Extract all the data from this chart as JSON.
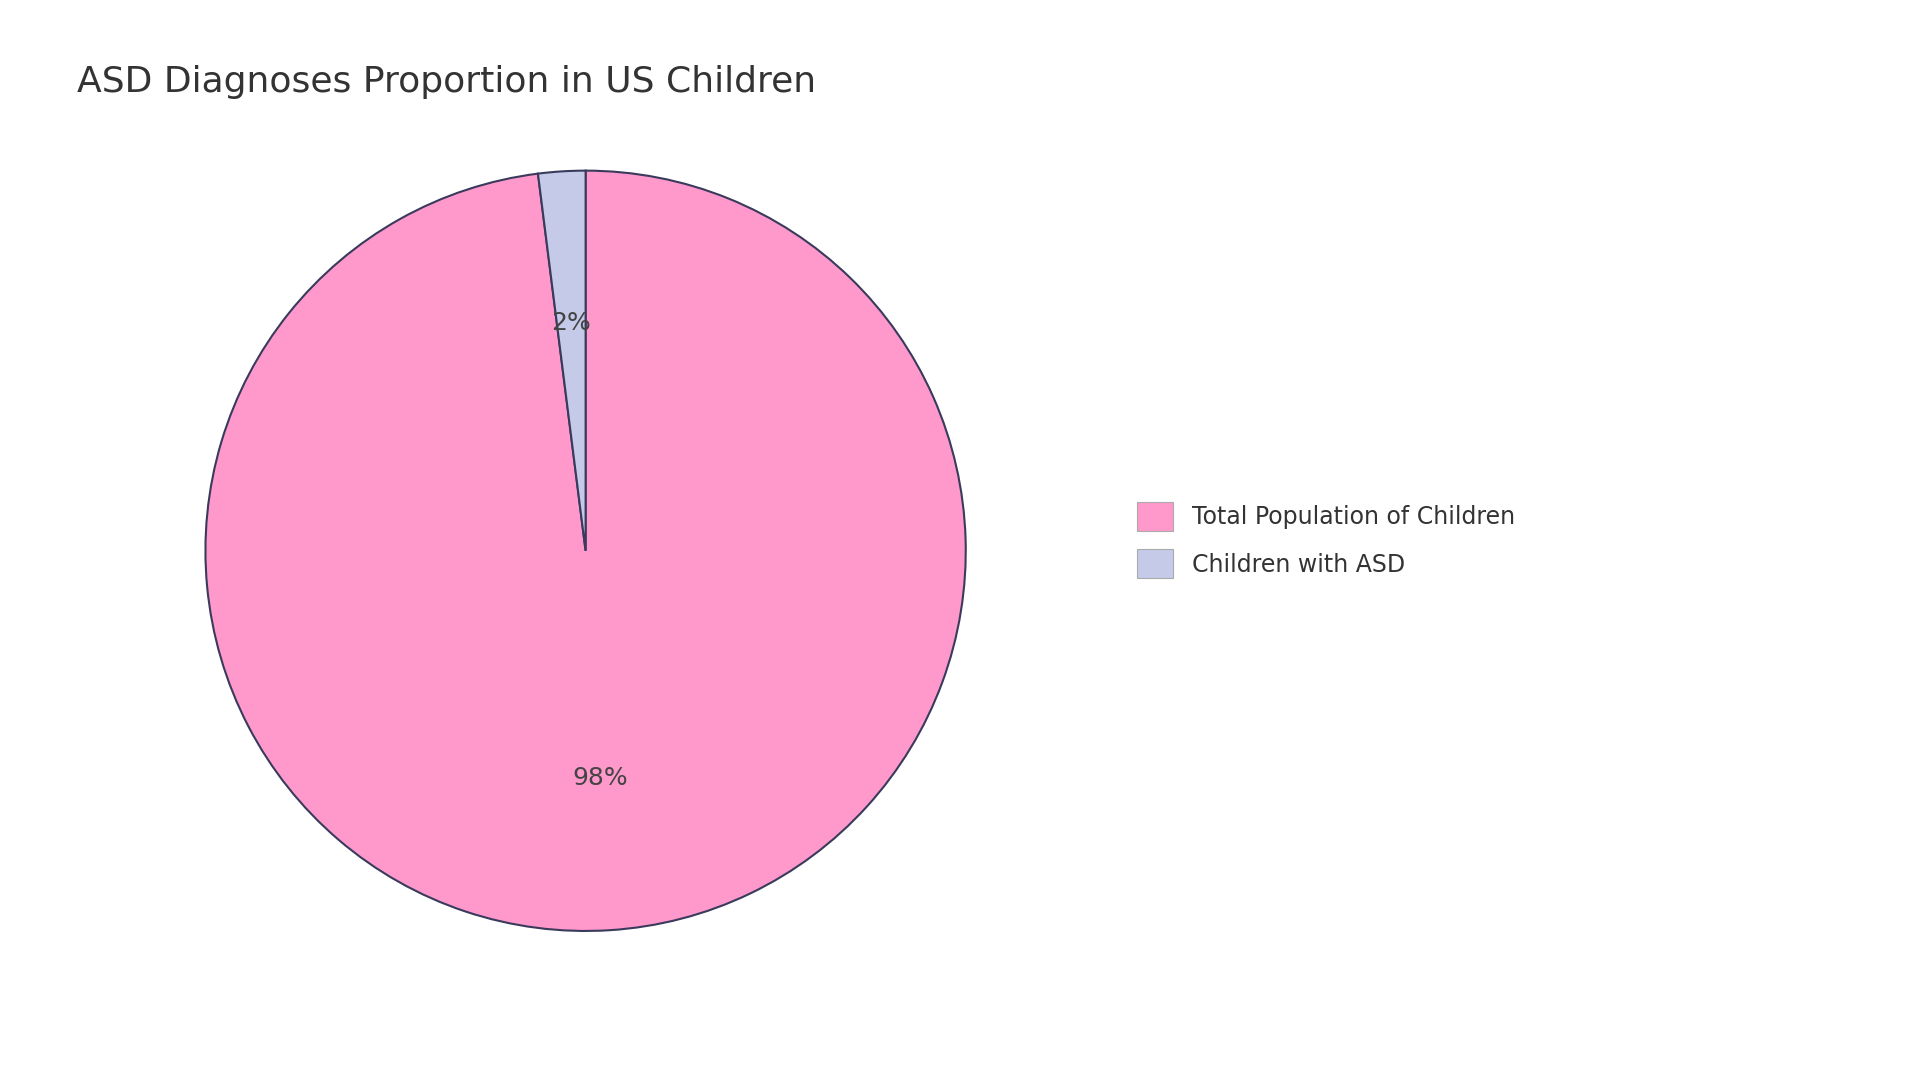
{
  "title": "ASD Diagnoses Proportion in US Children",
  "slices": [
    98,
    2
  ],
  "autopct_labels": [
    "98%",
    "2%"
  ],
  "colors": [
    "#FF99CC",
    "#C5CAE9"
  ],
  "edge_color": "#3a3a5c",
  "legend_labels": [
    "Total Population of Children",
    "Children with ASD"
  ],
  "legend_colors": [
    "#FF99CC",
    "#C5CAE9"
  ],
  "title_fontsize": 26,
  "autopct_fontsize": 18,
  "background_color": "#ffffff",
  "startangle": 90,
  "legend_fontsize": 17
}
